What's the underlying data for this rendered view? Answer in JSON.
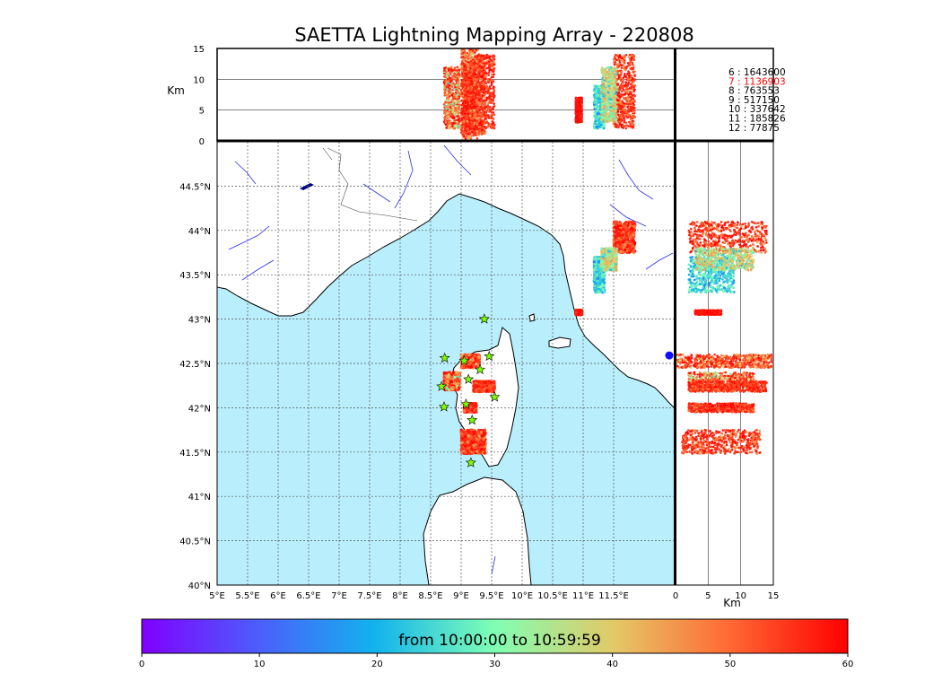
{
  "chart_data": {
    "type": "scatter",
    "title": "SAETTA Lightning Mapping Array - 220808",
    "map": {
      "lon_range": [
        5,
        12.5
      ],
      "lat_range": [
        40,
        45
      ],
      "lon_ticks": [
        "5°E",
        "5.5°E",
        "6°E",
        "6.5°E",
        "7°E",
        "7.5°E",
        "8°E",
        "8.5°E",
        "9°E",
        "9.5°E",
        "10°E",
        "10.5°E",
        "11°E",
        "11.5°E"
      ],
      "lat_ticks": [
        "40°N",
        "40.5°N",
        "41°N",
        "41.5°N",
        "42°N",
        "42.5°N",
        "43°N",
        "43.5°N",
        "44°N",
        "44.5°N"
      ],
      "grid": true,
      "sea_color": "#b9eefc",
      "land_color": "#ffffff"
    },
    "altitude_panels": {
      "unit_label": "Km",
      "range": [
        0,
        15
      ],
      "ticks": [
        "0",
        "5",
        "10",
        "15"
      ]
    },
    "counts": [
      {
        "label": "6",
        "value": "1643600",
        "color": "#000000"
      },
      {
        "label": "7",
        "value": "1136903",
        "color": "#ff0000"
      },
      {
        "label": "8",
        "value": "763553",
        "color": "#000000"
      },
      {
        "label": "9",
        "value": "517150",
        "color": "#000000"
      },
      {
        "label": "10",
        "value": "337642",
        "color": "#000000"
      },
      {
        "label": "11",
        "value": "185826",
        "color": "#000000"
      },
      {
        "label": "12",
        "value": "77875",
        "color": "#000000"
      }
    ],
    "stations": [
      {
        "lon": 9.38,
        "lat": 43.0
      },
      {
        "lon": 8.73,
        "lat": 42.56
      },
      {
        "lon": 9.05,
        "lat": 42.53
      },
      {
        "lon": 9.46,
        "lat": 42.58
      },
      {
        "lon": 9.31,
        "lat": 42.43
      },
      {
        "lon": 9.12,
        "lat": 42.32
      },
      {
        "lon": 8.68,
        "lat": 42.24
      },
      {
        "lon": 9.55,
        "lat": 42.12
      },
      {
        "lon": 8.72,
        "lat": 42.01
      },
      {
        "lon": 9.08,
        "lat": 42.04
      },
      {
        "lon": 9.18,
        "lat": 41.86
      },
      {
        "lon": 9.16,
        "lat": 41.38
      }
    ],
    "clusters": [
      {
        "lon": [
          8.72,
          8.98
        ],
        "lat": [
          42.2,
          42.4
        ],
        "alt": [
          2,
          12
        ],
        "color_min": 20,
        "color_max": 60
      },
      {
        "lon": [
          9.0,
          9.3
        ],
        "lat": [
          42.45,
          42.6
        ],
        "alt": [
          0,
          15
        ],
        "color_min": 35,
        "color_max": 60
      },
      {
        "lon": [
          9.2,
          9.55
        ],
        "lat": [
          42.18,
          42.3
        ],
        "alt": [
          2,
          14
        ],
        "color_min": 45,
        "color_max": 60
      },
      {
        "lon": [
          9.05,
          9.25
        ],
        "lat": [
          41.95,
          42.05
        ],
        "alt": [
          2,
          12
        ],
        "color_min": 45,
        "color_max": 60
      },
      {
        "lon": [
          9.0,
          9.4
        ],
        "lat": [
          41.48,
          41.75
        ],
        "alt": [
          1,
          13
        ],
        "color_min": 40,
        "color_max": 60
      },
      {
        "lon": [
          11.5,
          11.85
        ],
        "lat": [
          43.75,
          44.1
        ],
        "alt": [
          2,
          14
        ],
        "color_min": 40,
        "color_max": 60
      },
      {
        "lon": [
          11.18,
          11.35
        ],
        "lat": [
          43.3,
          43.7
        ],
        "alt": [
          2,
          9
        ],
        "color_min": 12,
        "color_max": 30
      },
      {
        "lon": [
          11.3,
          11.55
        ],
        "lat": [
          43.55,
          43.8
        ],
        "alt": [
          3,
          12
        ],
        "color_min": 18,
        "color_max": 45
      },
      {
        "lon": [
          10.88,
          10.98
        ],
        "lat": [
          43.05,
          43.1
        ],
        "alt": [
          3,
          7
        ],
        "color_min": 55,
        "color_max": 60
      }
    ],
    "colorbar": {
      "range": [
        0,
        60
      ],
      "ticks": [
        "0",
        "10",
        "20",
        "30",
        "40",
        "50",
        "60"
      ],
      "label": "from 10:00:00 to 10:59:59",
      "colormap": "rainbow"
    }
  }
}
